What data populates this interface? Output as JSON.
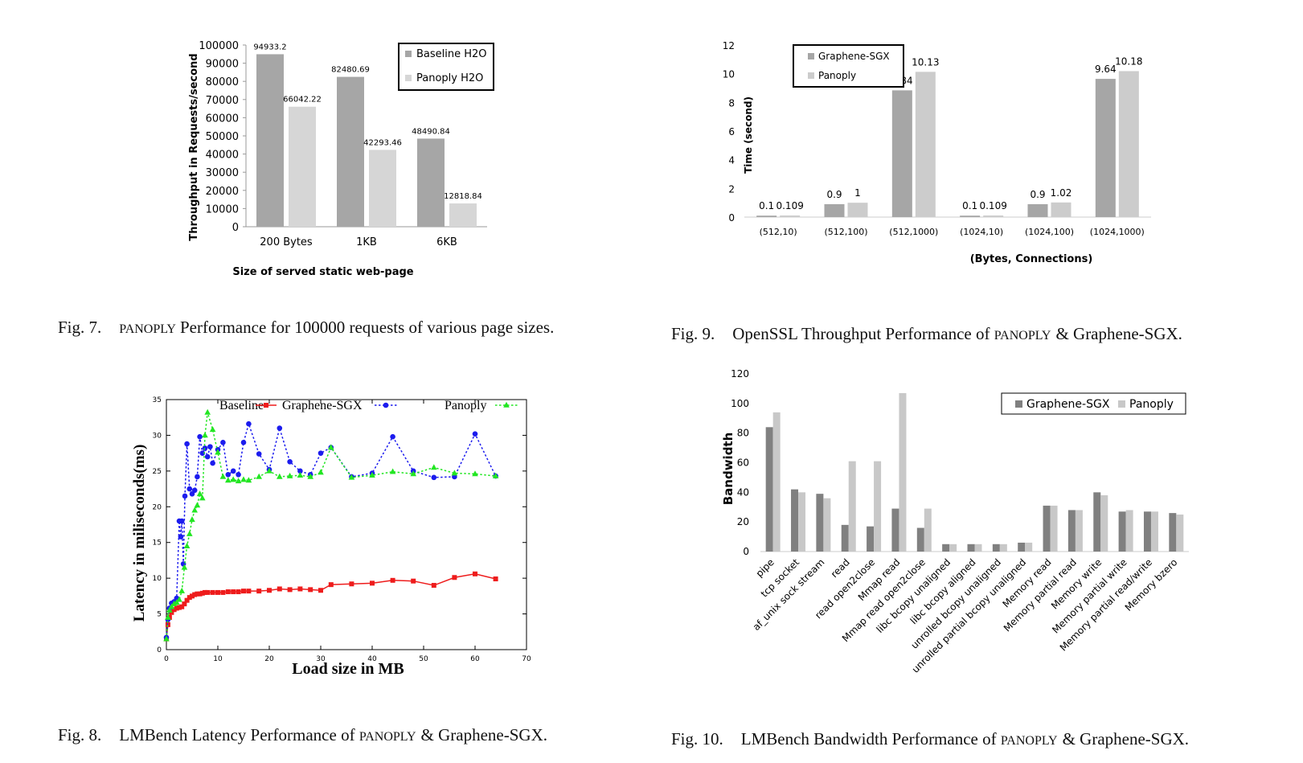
{
  "fig7": {
    "caption_num": "Fig. 7.",
    "caption_sc": "PANOPLY",
    "caption_rest": "Performance for 100000 requests of various page sizes."
  },
  "fig8": {
    "caption_num": "Fig. 8.",
    "caption_pre": "LMBench Latency Performance of ",
    "caption_sc": "PANOPLY",
    "caption_post": "& Graphene-SGX."
  },
  "fig9": {
    "caption_num": "Fig. 9.",
    "caption_pre": "OpenSSL Throughput Performance of ",
    "caption_sc": "PANOPLY",
    "caption_post": "& Graphene-SGX."
  },
  "fig10": {
    "caption_num": "Fig. 10.",
    "caption_pre": "LMBench Bandwidth Performance of ",
    "caption_sc": "PANOPLY",
    "caption_post": "& Graphene-SGX."
  },
  "chart_data": [
    {
      "id": "fig7",
      "type": "bar",
      "xlabel": "Size of served static web-page",
      "ylabel": "Throughput in Requests/second",
      "ylim": [
        0,
        100000
      ],
      "yticks": [
        0,
        10000,
        20000,
        30000,
        40000,
        50000,
        60000,
        70000,
        80000,
        90000,
        100000
      ],
      "categories": [
        "200 Bytes",
        "1KB",
        "6KB"
      ],
      "legend": "top-right",
      "series": [
        {
          "name": "Baseline H2O",
          "color": "#a6a6a6",
          "values": [
            94933.2,
            82480.69,
            48490.84
          ],
          "labels": [
            "94933.2",
            "82480.69",
            "48490.84"
          ]
        },
        {
          "name": "Panoply H2O",
          "color": "#d6d6d6",
          "values": [
            66042.22,
            42293.46,
            12818.84
          ],
          "labels": [
            "66042.22",
            "42293.46",
            "12818.84"
          ]
        }
      ]
    },
    {
      "id": "fig9",
      "type": "bar",
      "xlabel": "(Bytes, Connections)",
      "ylabel": "Time (second)",
      "ylim": [
        0,
        12
      ],
      "yticks": [
        0,
        2,
        4,
        6,
        8,
        10,
        12
      ],
      "categories": [
        "(512,10)",
        "(512,100)",
        "(512,1000)",
        "(1024,10)",
        "(1024,100)",
        "(1024,1000)"
      ],
      "legend": "top-left",
      "series": [
        {
          "name": "Graphene-SGX",
          "color": "#a6a6a6",
          "values": [
            0.1,
            0.9,
            8.84,
            0.1,
            0.9,
            9.64
          ],
          "labels": [
            "0.1",
            "0.9",
            "8.84",
            "0.1",
            "0.9",
            "9.64"
          ]
        },
        {
          "name": "Panoply",
          "color": "#cccccc",
          "values": [
            0.109,
            1,
            10.13,
            0.109,
            1.02,
            10.18
          ],
          "labels": [
            "0.109",
            "1",
            "10.13",
            "0.109",
            "1.02",
            "10.18"
          ]
        }
      ]
    },
    {
      "id": "fig8",
      "type": "line",
      "xlabel": "Load size in MB",
      "ylabel": "Latency in miliseconds(ms)",
      "xlim": [
        0,
        70
      ],
      "ylim": [
        0,
        35
      ],
      "xticks": [
        0,
        10,
        20,
        30,
        40,
        50,
        60,
        70
      ],
      "yticks": [
        0,
        5,
        10,
        15,
        20,
        25,
        30,
        35
      ],
      "grid": false,
      "legend": "top",
      "series": [
        {
          "name": "Baseline",
          "color": "",
          "marker": "none",
          "x": [],
          "y": []
        },
        {
          "name": "Graphene-SGX",
          "color": "#ee1c1c",
          "marker": "square",
          "dash": "solid",
          "x": [
            0,
            0.3,
            0.6,
            1,
            1.5,
            2,
            2.5,
            3,
            3.5,
            4,
            4.5,
            5,
            5.5,
            6,
            6.5,
            7,
            7.5,
            8,
            9,
            10,
            11,
            12,
            13,
            14,
            15,
            16,
            18,
            20,
            22,
            24,
            26,
            28,
            30,
            32,
            36,
            40,
            44,
            48,
            52,
            56,
            60,
            64
          ],
          "y": [
            1.5,
            3.5,
            4.5,
            5.2,
            5.6,
            5.8,
            5.9,
            6.0,
            6.4,
            6.9,
            7.3,
            7.5,
            7.7,
            7.8,
            7.8,
            7.9,
            8.0,
            8.0,
            8.0,
            8.0,
            8.0,
            8.1,
            8.1,
            8.1,
            8.2,
            8.2,
            8.2,
            8.3,
            8.5,
            8.4,
            8.5,
            8.4,
            8.3,
            9.1,
            9.2,
            9.3,
            9.7,
            9.6,
            9.0,
            10.1,
            10.6,
            9.9
          ]
        },
        {
          "name": "Panoply",
          "color": "#22e622",
          "marker": "triangle",
          "dash": "dotted",
          "x": [
            0,
            0.3,
            0.6,
            1,
            1.5,
            2,
            2.5,
            3,
            3.5,
            4,
            4.5,
            5,
            5.5,
            6,
            6.5,
            7,
            7.5,
            8,
            9,
            10,
            11,
            12,
            13,
            14,
            15,
            16,
            18,
            20,
            22,
            24,
            26,
            28,
            30,
            32,
            36,
            40,
            44,
            48,
            52,
            56,
            60,
            64
          ],
          "y": [
            1.5,
            4.5,
            5.5,
            6.0,
            6.4,
            6.6,
            7.0,
            8.2,
            11.5,
            14.5,
            16.2,
            18.2,
            19.5,
            20.2,
            21.8,
            21.2,
            30.0,
            33.2,
            30.8,
            27.6,
            24.2,
            23.7,
            23.8,
            23.6,
            23.8,
            23.7,
            24.2,
            25.0,
            24.2,
            24.3,
            24.4,
            24.2,
            24.8,
            28.3,
            24.1,
            24.4,
            24.9,
            24.6,
            25.5,
            24.7,
            24.6,
            24.3
          ]
        },
        {
          "name": "",
          "color": "#1c1cee",
          "marker": "circle",
          "dash": "dotted",
          "x": [
            0,
            0.3,
            0.6,
            1,
            1.5,
            2,
            2.5,
            2.8,
            3,
            3.3,
            3.6,
            4,
            4.5,
            5,
            5.5,
            6,
            6.5,
            7,
            7.5,
            8,
            8.5,
            9,
            10,
            11,
            12,
            13,
            14,
            15,
            16,
            18,
            20,
            22,
            24,
            26,
            28,
            30,
            32,
            36,
            40,
            44,
            48,
            52,
            56,
            60,
            64
          ],
          "y": [
            1.7,
            4.2,
            5.8,
            6.5,
            6.7,
            7.2,
            18.0,
            15.8,
            18.0,
            12.0,
            21.5,
            28.8,
            22.5,
            21.8,
            22.3,
            24.2,
            29.8,
            27.5,
            28.2,
            27.0,
            28.4,
            26.1,
            28.0,
            29.0,
            24.5,
            25.0,
            24.5,
            29.0,
            31.6,
            27.4,
            25.2,
            31.0,
            26.3,
            25.0,
            24.5,
            27.5,
            28.3,
            24.2,
            24.7,
            29.8,
            25.0,
            24.1,
            24.2,
            30.2,
            24.3
          ]
        }
      ]
    },
    {
      "id": "fig10",
      "type": "bar",
      "xlabel": "",
      "ylabel": "Bandwidth",
      "ylim": [
        0,
        120
      ],
      "yticks": [
        0,
        20,
        40,
        60,
        80,
        100,
        120
      ],
      "categories": [
        "pipe",
        "tcp socket",
        "af_unix sock stream",
        "read",
        "read open2close",
        "Mmap read",
        "Mmap read open2close",
        "libc bcopy unaligned",
        "libc bcopy aligned",
        "unrolled bcopy unaligned",
        "unrolled partial bcopy unaligned",
        "Memory read",
        "Memory partial read",
        "Memory write",
        "Memory partial write",
        "Memory partial read/write",
        "Memory bzero"
      ],
      "legend": "top-right",
      "series": [
        {
          "name": "Graphene-SGX",
          "color": "#808080",
          "values": [
            84,
            42,
            39,
            18,
            17,
            29,
            16,
            5,
            5,
            5,
            6,
            31,
            28,
            40,
            27,
            27,
            26
          ]
        },
        {
          "name": "Panoply",
          "color": "#c8c8c8",
          "values": [
            94,
            40,
            36,
            61,
            61,
            107,
            29,
            5,
            5,
            5,
            6,
            31,
            28,
            38,
            28,
            27,
            25
          ]
        }
      ]
    }
  ]
}
